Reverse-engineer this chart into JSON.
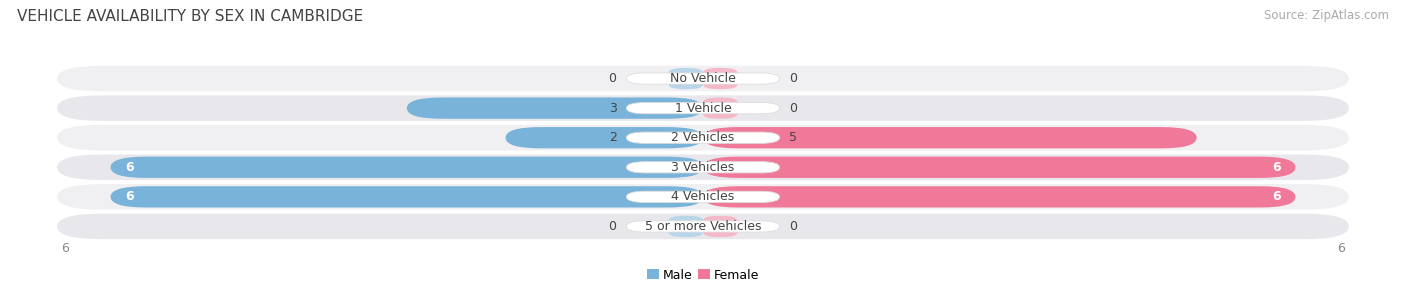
{
  "title": "VEHICLE AVAILABILITY BY SEX IN CAMBRIDGE",
  "source": "Source: ZipAtlas.com",
  "categories": [
    "No Vehicle",
    "1 Vehicle",
    "2 Vehicles",
    "3 Vehicles",
    "4 Vehicles",
    "5 or more Vehicles"
  ],
  "male_values": [
    0,
    3,
    2,
    6,
    6,
    0
  ],
  "female_values": [
    0,
    0,
    5,
    6,
    6,
    0
  ],
  "male_color": "#7ab3d9",
  "female_color": "#f07898",
  "male_color_light": "#b8d5ea",
  "female_color_light": "#f5b8c8",
  "row_bg_colors": [
    "#f0f0f2",
    "#e8e8ec",
    "#f0f0f2",
    "#e8e8ec",
    "#f0f0f2",
    "#e8e8ec"
  ],
  "max_value": 6,
  "legend_male": "Male",
  "legend_female": "Female",
  "title_fontsize": 11,
  "source_fontsize": 8.5,
  "label_fontsize": 9,
  "category_fontsize": 9
}
